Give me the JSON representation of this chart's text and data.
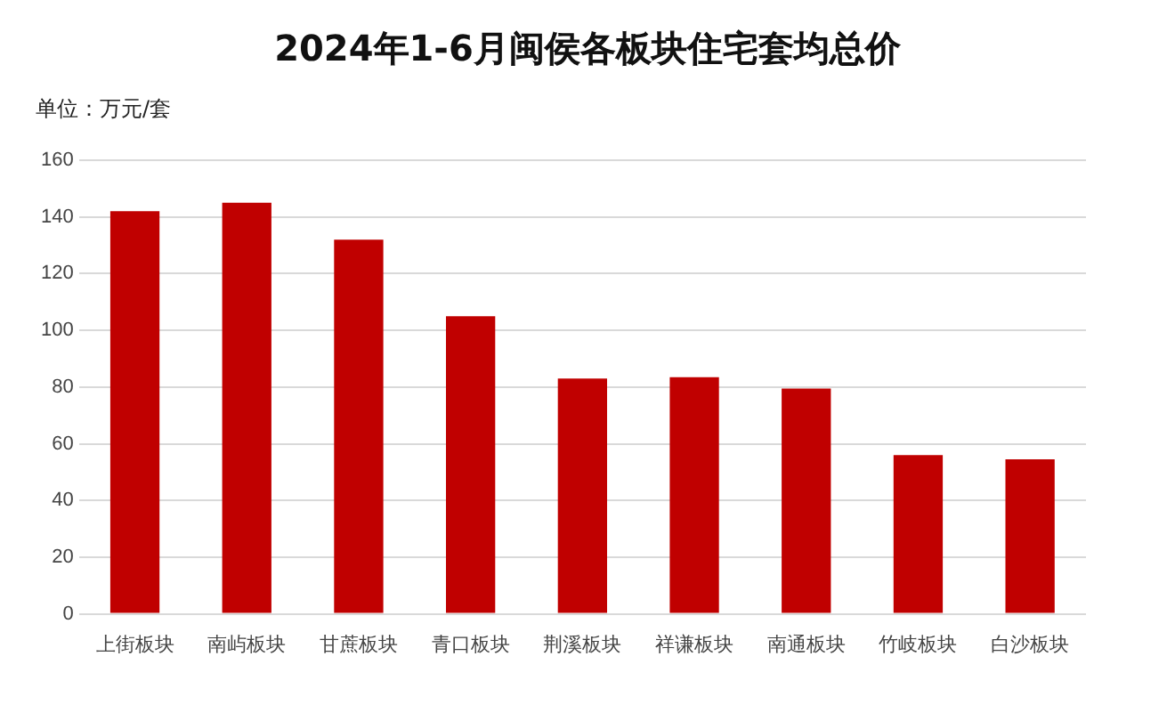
{
  "chart_data": {
    "type": "bar",
    "title": "2024年1-6月闽侯各板块住宅套均总价",
    "ylabel": "单位：万元/套",
    "categories": [
      "上街板块",
      "南屿板块",
      "甘蔗板块",
      "青口板块",
      "荆溪板块",
      "祥谦板块",
      "南通板块",
      "竹岐板块",
      "白沙板块"
    ],
    "values": [
      142,
      145,
      132,
      105,
      83,
      83.5,
      79.5,
      56,
      54.5
    ],
    "color": "#c00000",
    "ylim": [
      0,
      160
    ],
    "yticks": [
      0,
      20,
      40,
      60,
      80,
      100,
      120,
      140,
      160
    ],
    "grid": "y",
    "legend": false
  }
}
